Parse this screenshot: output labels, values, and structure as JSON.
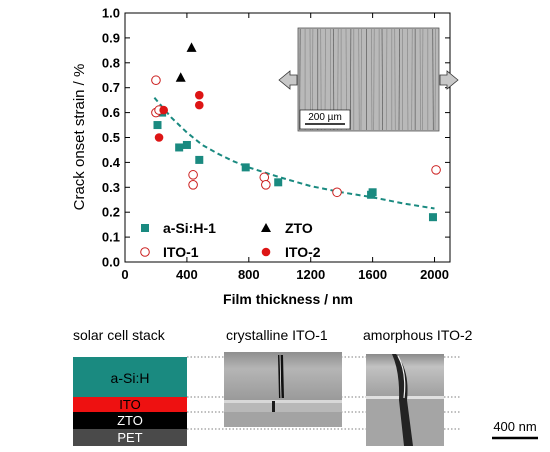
{
  "chart_data": {
    "type": "scatter",
    "xlabel": "Film thickness / nm",
    "ylabel": "Crack onset strain / %",
    "xlim": [
      0,
      2100
    ],
    "ylim": [
      0.0,
      1.0
    ],
    "xticks": [
      0,
      400,
      800,
      1200,
      1600,
      2000
    ],
    "yticks": [
      0.0,
      0.1,
      0.2,
      0.3,
      0.4,
      0.5,
      0.6,
      0.7,
      0.8,
      0.9,
      1.0
    ],
    "ytick_labels": [
      "0.0",
      "0.1",
      "0.2",
      "0.3",
      "0.4",
      "0.5",
      "0.6",
      "0.7",
      "0.8",
      "0.9",
      "1.0"
    ],
    "grid": false,
    "legend_placement": "bottom-left",
    "series": [
      {
        "name": "a-Si:H-1",
        "marker": "square-filled",
        "color": "#1a8a80",
        "points": [
          [
            210,
            0.55
          ],
          [
            240,
            0.6
          ],
          [
            350,
            0.46
          ],
          [
            400,
            0.47
          ],
          [
            480,
            0.41
          ],
          [
            780,
            0.38
          ],
          [
            990,
            0.32
          ],
          [
            1590,
            0.27
          ],
          [
            1600,
            0.28
          ],
          [
            1990,
            0.18
          ]
        ]
      },
      {
        "name": "ITO-1",
        "marker": "circle-open",
        "color": "#cc1f1f",
        "points": [
          [
            200,
            0.73
          ],
          [
            200,
            0.6
          ],
          [
            220,
            0.61
          ],
          [
            440,
            0.35
          ],
          [
            440,
            0.31
          ],
          [
            900,
            0.34
          ],
          [
            910,
            0.31
          ],
          [
            1370,
            0.28
          ],
          [
            2010,
            0.37
          ]
        ]
      },
      {
        "name": "ZTO",
        "marker": "triangle-filled",
        "color": "#000000",
        "points": [
          [
            360,
            0.74
          ],
          [
            430,
            0.86
          ]
        ]
      },
      {
        "name": "ITO-2",
        "marker": "circle-filled",
        "color": "#dd1515",
        "points": [
          [
            220,
            0.5
          ],
          [
            250,
            0.61
          ],
          [
            480,
            0.67
          ],
          [
            480,
            0.63
          ]
        ]
      }
    ],
    "fit_curve": {
      "style": "dashed",
      "color": "#1a8a80",
      "points": [
        [
          190,
          0.66
        ],
        [
          300,
          0.58
        ],
        [
          400,
          0.52
        ],
        [
          500,
          0.47
        ],
        [
          600,
          0.435
        ],
        [
          700,
          0.405
        ],
        [
          800,
          0.38
        ],
        [
          1000,
          0.34
        ],
        [
          1200,
          0.305
        ],
        [
          1400,
          0.28
        ],
        [
          1600,
          0.26
        ],
        [
          1800,
          0.235
        ],
        [
          2000,
          0.215
        ]
      ]
    }
  },
  "inset": {
    "scale_label": "200 µm"
  },
  "bottom": {
    "label_stack": "solar cell stack",
    "label_crystalline": "crystalline ITO-1",
    "label_amorphous": "amorphous ITO-2",
    "layers": [
      {
        "name": "a-Si:H",
        "color": "#1a8a80",
        "text_color": "#000000"
      },
      {
        "name": "ITO",
        "color": "#ee1111",
        "text_color": "#000000"
      },
      {
        "name": "ZTO",
        "color": "#000000",
        "text_color": "#ffffff"
      },
      {
        "name": "PET",
        "color": "#4a4a4a",
        "text_color": "#ffffff"
      }
    ],
    "scale_label": "400 nm"
  }
}
